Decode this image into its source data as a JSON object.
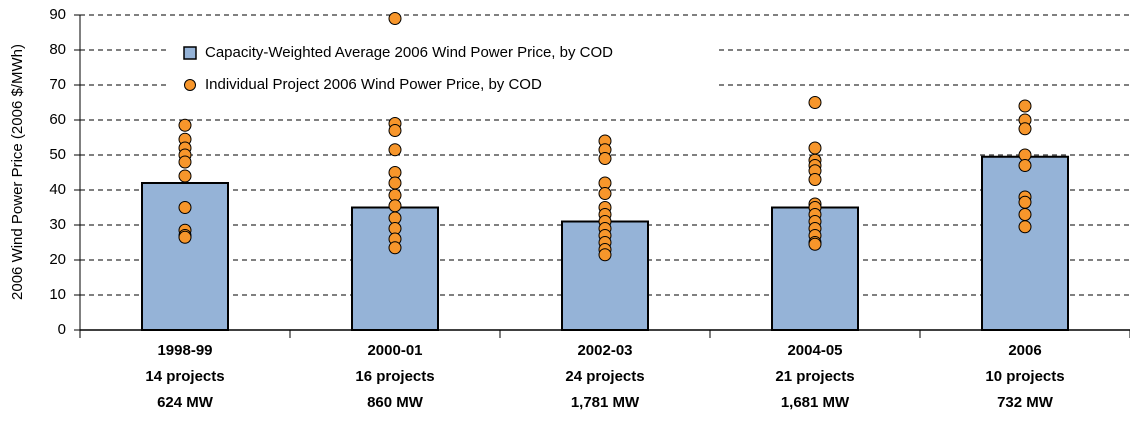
{
  "chart_data": {
    "type": "bar",
    "y_label": "2006 Wind Power Price (2006 $/MWh)",
    "categories": [
      [
        "1998-99",
        "14 projects",
        "624 MW"
      ],
      [
        "2000-01",
        "16 projects",
        "860 MW"
      ],
      [
        "2002-03",
        "24 projects",
        "1,781 MW"
      ],
      [
        "2004-05",
        "21 projects",
        "1,681 MW"
      ],
      [
        "2006",
        "10 projects",
        "732 MW"
      ]
    ],
    "series": [
      {
        "name": "Capacity-Weighted Average 2006 Wind Power Price, by COD",
        "type": "bar",
        "color": "#95b3d7",
        "values": [
          42,
          35,
          31,
          35,
          49.5
        ]
      },
      {
        "name": "Individual Project 2006 Wind Power Price, by COD",
        "type": "scatter",
        "color": "#f7962b",
        "values": [
          [
            58.5,
            54.5,
            52,
            50,
            48,
            44,
            35,
            28.5,
            27,
            26.5
          ],
          [
            89,
            59,
            57,
            51.5,
            45,
            42,
            38.5,
            35.5,
            32,
            29,
            26,
            23.5
          ],
          [
            54,
            51.5,
            49,
            42,
            39,
            35,
            33,
            31,
            29,
            27,
            25,
            23,
            21.5
          ],
          [
            65,
            52,
            48.5,
            47,
            45.5,
            43,
            36,
            35,
            33,
            31,
            29,
            27,
            25,
            24.5
          ],
          [
            64,
            60,
            57.5,
            50,
            47,
            38,
            36.5,
            33,
            29.5
          ]
        ]
      }
    ],
    "ylim": [
      0,
      90
    ],
    "yticks": [
      0,
      10,
      20,
      30,
      40,
      50,
      60,
      70,
      80,
      90
    ],
    "grid": true
  }
}
